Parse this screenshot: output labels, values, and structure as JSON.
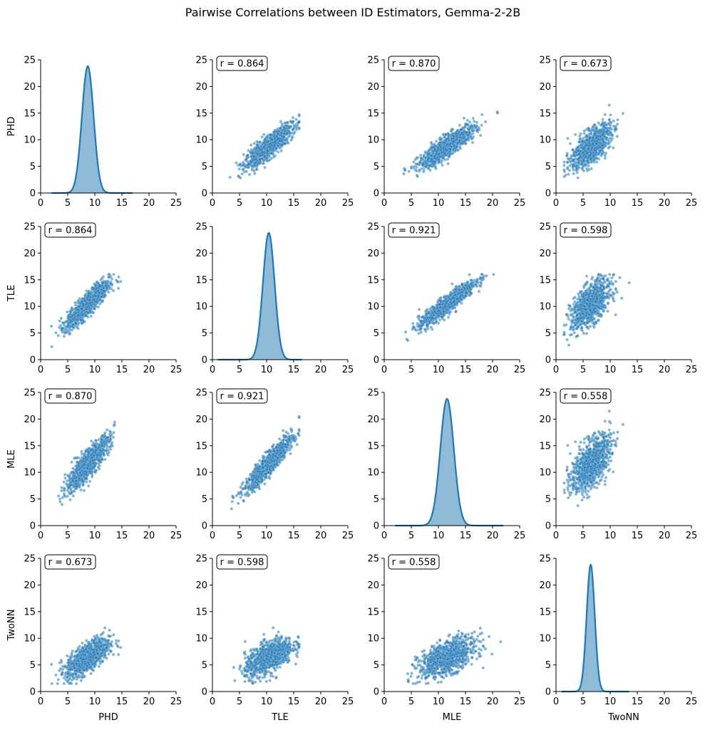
{
  "chart_data": {
    "type": "pairplot",
    "title": "Pairwise Correlations between ID Estimators, Gemma-2-2B",
    "variables": [
      "PHD",
      "TLE",
      "MLE",
      "TwoNN"
    ],
    "axis_limits": [
      0,
      25
    ],
    "ticks": [
      0,
      5,
      10,
      15,
      20,
      25
    ],
    "tick_labels": [
      "0",
      "5",
      "10",
      "15",
      "20",
      "25"
    ],
    "point_color": "#1f77b4",
    "density_color": "#1f77b4",
    "diagonal": [
      {
        "variable": "PHD",
        "type": "kde",
        "mean": 8.7,
        "sd": 1.08,
        "range": [
          2,
          17
        ],
        "peak": 23.8
      },
      {
        "variable": "TLE",
        "type": "kde",
        "mean": 10.4,
        "sd": 1.08,
        "range": [
          1,
          16.5
        ],
        "peak": 23.8
      },
      {
        "variable": "MLE",
        "type": "kde",
        "mean": 11.6,
        "sd": 1.25,
        "range": [
          2,
          22
        ],
        "peak": 23.8
      },
      {
        "variable": "TwoNN",
        "type": "kde",
        "mean": 6.4,
        "sd": 0.75,
        "range": [
          1,
          13.5
        ],
        "peak": 23.8
      }
    ],
    "panels": [
      {
        "row": 0,
        "col": 1,
        "type": "scatter",
        "r": 0.864,
        "r_label": "r = 0.864",
        "x_var": "TLE",
        "y_var": "PHD",
        "x_range": [
          1.5,
          16
        ],
        "y_range": [
          2,
          16.5
        ]
      },
      {
        "row": 0,
        "col": 2,
        "type": "scatter",
        "r": 0.87,
        "r_label": "r = 0.870",
        "x_var": "MLE",
        "y_var": "PHD",
        "x_range": [
          2.2,
          21.5
        ],
        "y_range": [
          2,
          16.5
        ]
      },
      {
        "row": 0,
        "col": 3,
        "type": "scatter",
        "r": 0.673,
        "r_label": "r = 0.673",
        "x_var": "TwoNN",
        "y_var": "PHD",
        "x_range": [
          1.5,
          13.5
        ],
        "y_range": [
          2,
          16.5
        ]
      },
      {
        "row": 1,
        "col": 0,
        "type": "scatter",
        "r": 0.864,
        "r_label": "r = 0.864",
        "x_var": "PHD",
        "y_var": "TLE",
        "x_range": [
          2,
          16.5
        ],
        "y_range": [
          1.5,
          16
        ]
      },
      {
        "row": 1,
        "col": 2,
        "type": "scatter",
        "r": 0.921,
        "r_label": "r = 0.921",
        "x_var": "MLE",
        "y_var": "TLE",
        "x_range": [
          2.2,
          21.5
        ],
        "y_range": [
          1.5,
          16
        ]
      },
      {
        "row": 1,
        "col": 3,
        "type": "scatter",
        "r": 0.598,
        "r_label": "r = 0.598",
        "x_var": "TwoNN",
        "y_var": "TLE",
        "x_range": [
          1.5,
          13.5
        ],
        "y_range": [
          1.5,
          16
        ]
      },
      {
        "row": 2,
        "col": 0,
        "type": "scatter",
        "r": 0.87,
        "r_label": "r = 0.870",
        "x_var": "PHD",
        "y_var": "MLE",
        "x_range": [
          2,
          16.5
        ],
        "y_range": [
          2.2,
          21.5
        ]
      },
      {
        "row": 2,
        "col": 1,
        "type": "scatter",
        "r": 0.921,
        "r_label": "r = 0.921",
        "x_var": "TLE",
        "y_var": "MLE",
        "x_range": [
          1.5,
          16
        ],
        "y_range": [
          2.2,
          21.5
        ]
      },
      {
        "row": 2,
        "col": 3,
        "type": "scatter",
        "r": 0.558,
        "r_label": "r = 0.558",
        "x_var": "TwoNN",
        "y_var": "MLE",
        "x_range": [
          1.5,
          13.5
        ],
        "y_range": [
          2.2,
          21.5
        ]
      },
      {
        "row": 3,
        "col": 0,
        "type": "scatter",
        "r": 0.673,
        "r_label": "r = 0.673",
        "x_var": "PHD",
        "y_var": "TwoNN",
        "x_range": [
          2,
          16.5
        ],
        "y_range": [
          1.5,
          13.5
        ]
      },
      {
        "row": 3,
        "col": 1,
        "type": "scatter",
        "r": 0.598,
        "r_label": "r = 0.598",
        "x_var": "TLE",
        "y_var": "TwoNN",
        "x_range": [
          1.5,
          16
        ],
        "y_range": [
          1.5,
          13.5
        ]
      },
      {
        "row": 3,
        "col": 2,
        "type": "scatter",
        "r": 0.558,
        "r_label": "r = 0.558",
        "x_var": "MLE",
        "y_var": "TwoNN",
        "x_range": [
          2.2,
          21.5
        ],
        "y_range": [
          1.5,
          13.5
        ]
      }
    ],
    "summary": {
      "PHD": {
        "mean": 8.7,
        "sd": 2.0
      },
      "TLE": {
        "mean": 10.4,
        "sd": 2.2
      },
      "MLE": {
        "mean": 11.6,
        "sd": 2.6
      },
      "TwoNN": {
        "mean": 6.4,
        "sd": 1.8
      }
    }
  }
}
